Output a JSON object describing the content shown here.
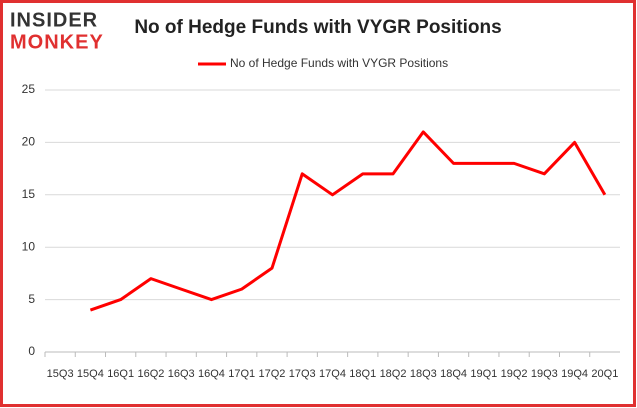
{
  "logo": {
    "top": "INSIDER",
    "bottom": "MONKEY"
  },
  "chart_data": {
    "type": "line",
    "title": "No of Hedge Funds with VYGR Positions",
    "categories": [
      "15Q3",
      "15Q4",
      "16Q1",
      "16Q2",
      "16Q3",
      "16Q4",
      "17Q1",
      "17Q2",
      "17Q3",
      "17Q4",
      "18Q1",
      "18Q2",
      "18Q3",
      "18Q4",
      "19Q1",
      "19Q2",
      "19Q3",
      "19Q4",
      "20Q1"
    ],
    "series": [
      {
        "name": "No of Hedge Funds with VYGR Positions",
        "color": "#ff0000",
        "values": [
          null,
          4,
          5,
          7,
          6,
          5,
          6,
          8,
          17,
          15,
          17,
          17,
          21,
          18,
          18,
          18,
          17,
          20,
          15
        ]
      }
    ],
    "ylim": [
      0,
      25
    ],
    "yticks": [
      0,
      5,
      10,
      15,
      20,
      25
    ],
    "grid": true,
    "legend": "top"
  }
}
